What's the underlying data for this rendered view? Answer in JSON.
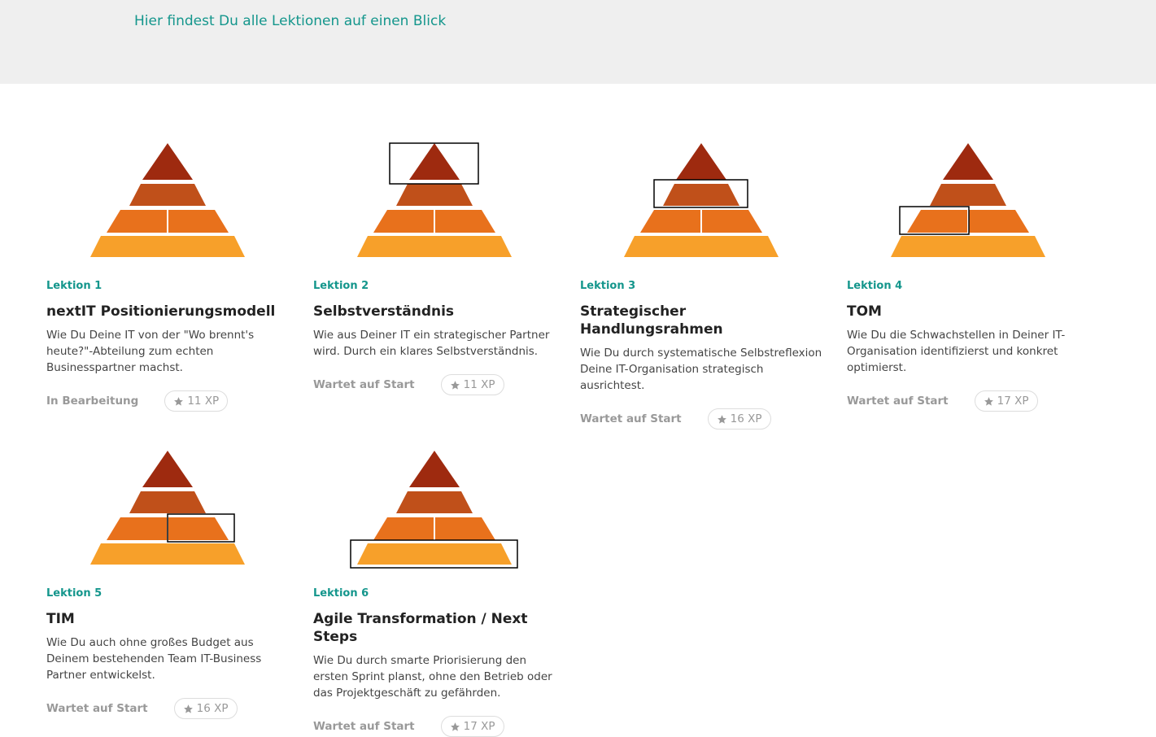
{
  "header": {
    "subtitle": "Hier findest Du alle Lektionen auf einen Blick"
  },
  "lessons": [
    {
      "label": "Lektion 1",
      "title": "nextIT Positionierungsmodell",
      "description": "Wie Du Deine IT von der \"Wo brennt's heute?\"-Abteilung zum echten Businesspartner machst.",
      "status": "In Bearbeitung",
      "xp": "11 XP"
    },
    {
      "label": "Lektion 2",
      "title": "Selbstverständnis",
      "description": "Wie aus Deiner IT ein strategischer Partner wird. Durch ein klares Selbstverständnis.",
      "status": "Wartet auf Start",
      "xp": "11 XP"
    },
    {
      "label": "Lektion 3",
      "title": "Strategischer Handlungsrahmen",
      "description": "Wie Du durch systematische Selbstreflexion Deine IT-Organisation strategisch ausrichtest.",
      "status": "Wartet auf Start",
      "xp": "16 XP"
    },
    {
      "label": "Lektion 4",
      "title": "TOM",
      "description": "Wie Du die Schwachstellen in Deiner IT-Organisation identifizierst und konkret optimierst.",
      "status": "Wartet auf Start",
      "xp": "17 XP"
    },
    {
      "label": "Lektion 5",
      "title": "TIM",
      "description": "Wie Du auch ohne großes Budget aus Deinem bestehenden Team IT-Business Partner entwickelst.",
      "status": "Wartet auf Start",
      "xp": "16 XP"
    },
    {
      "label": "Lektion 6",
      "title": "Agile Transformation / Next Steps",
      "description": "Wie Du durch smarte Priorisierung den ersten Sprint planst, ohne den Betrieb oder das Projektgeschäft zu gefährden.",
      "status": "Wartet auf Start",
      "xp": "17 XP"
    }
  ]
}
